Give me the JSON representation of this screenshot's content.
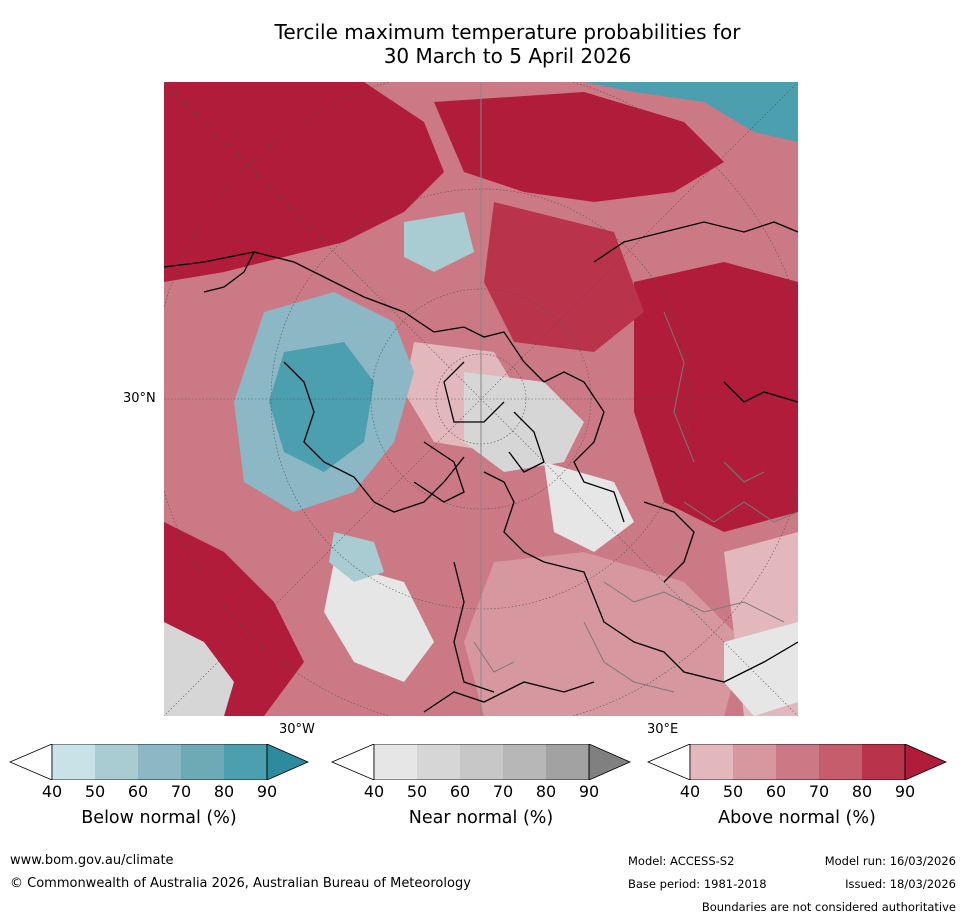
{
  "title": {
    "line1": "Tercile maximum temperature probabilities for",
    "line2": "30 March to 5 April 2026"
  },
  "map": {
    "lat_label": "30°N",
    "lon_label_west": "30°W",
    "lon_label_east": "30°E",
    "colors": {
      "below": [
        "#ffffff",
        "#c9e2e8",
        "#a9cbd2",
        "#8bb8c4",
        "#6eaab5",
        "#4b9fae",
        "#2d8b9d"
      ],
      "near": [
        "#ffffff",
        "#e6e6e6",
        "#d6d6d6",
        "#c7c7c7",
        "#b7b7b7",
        "#a2a2a2",
        "#808080"
      ],
      "above": [
        "#ffffff",
        "#e2b8bd",
        "#d7979f",
        "#cb7985",
        "#c65d6c",
        "#b9334a",
        "#b01c39"
      ]
    }
  },
  "legend": {
    "ticks": [
      "40",
      "50",
      "60",
      "70",
      "80",
      "90"
    ],
    "below_title": "Below normal (%)",
    "near_title": "Near normal (%)",
    "above_title": "Above normal (%)"
  },
  "footer": {
    "url": "www.bom.gov.au/climate",
    "copyright": "© Commonwealth of Australia 2026, Australian Bureau of Meteorology",
    "model": "Model: ACCESS-S2",
    "base_period": "Base period: 1981-2018",
    "model_run": "Model run: 16/03/2026",
    "issued": "Issued: 18/03/2026",
    "disclaimer": "Boundaries are not considered authoritative"
  }
}
